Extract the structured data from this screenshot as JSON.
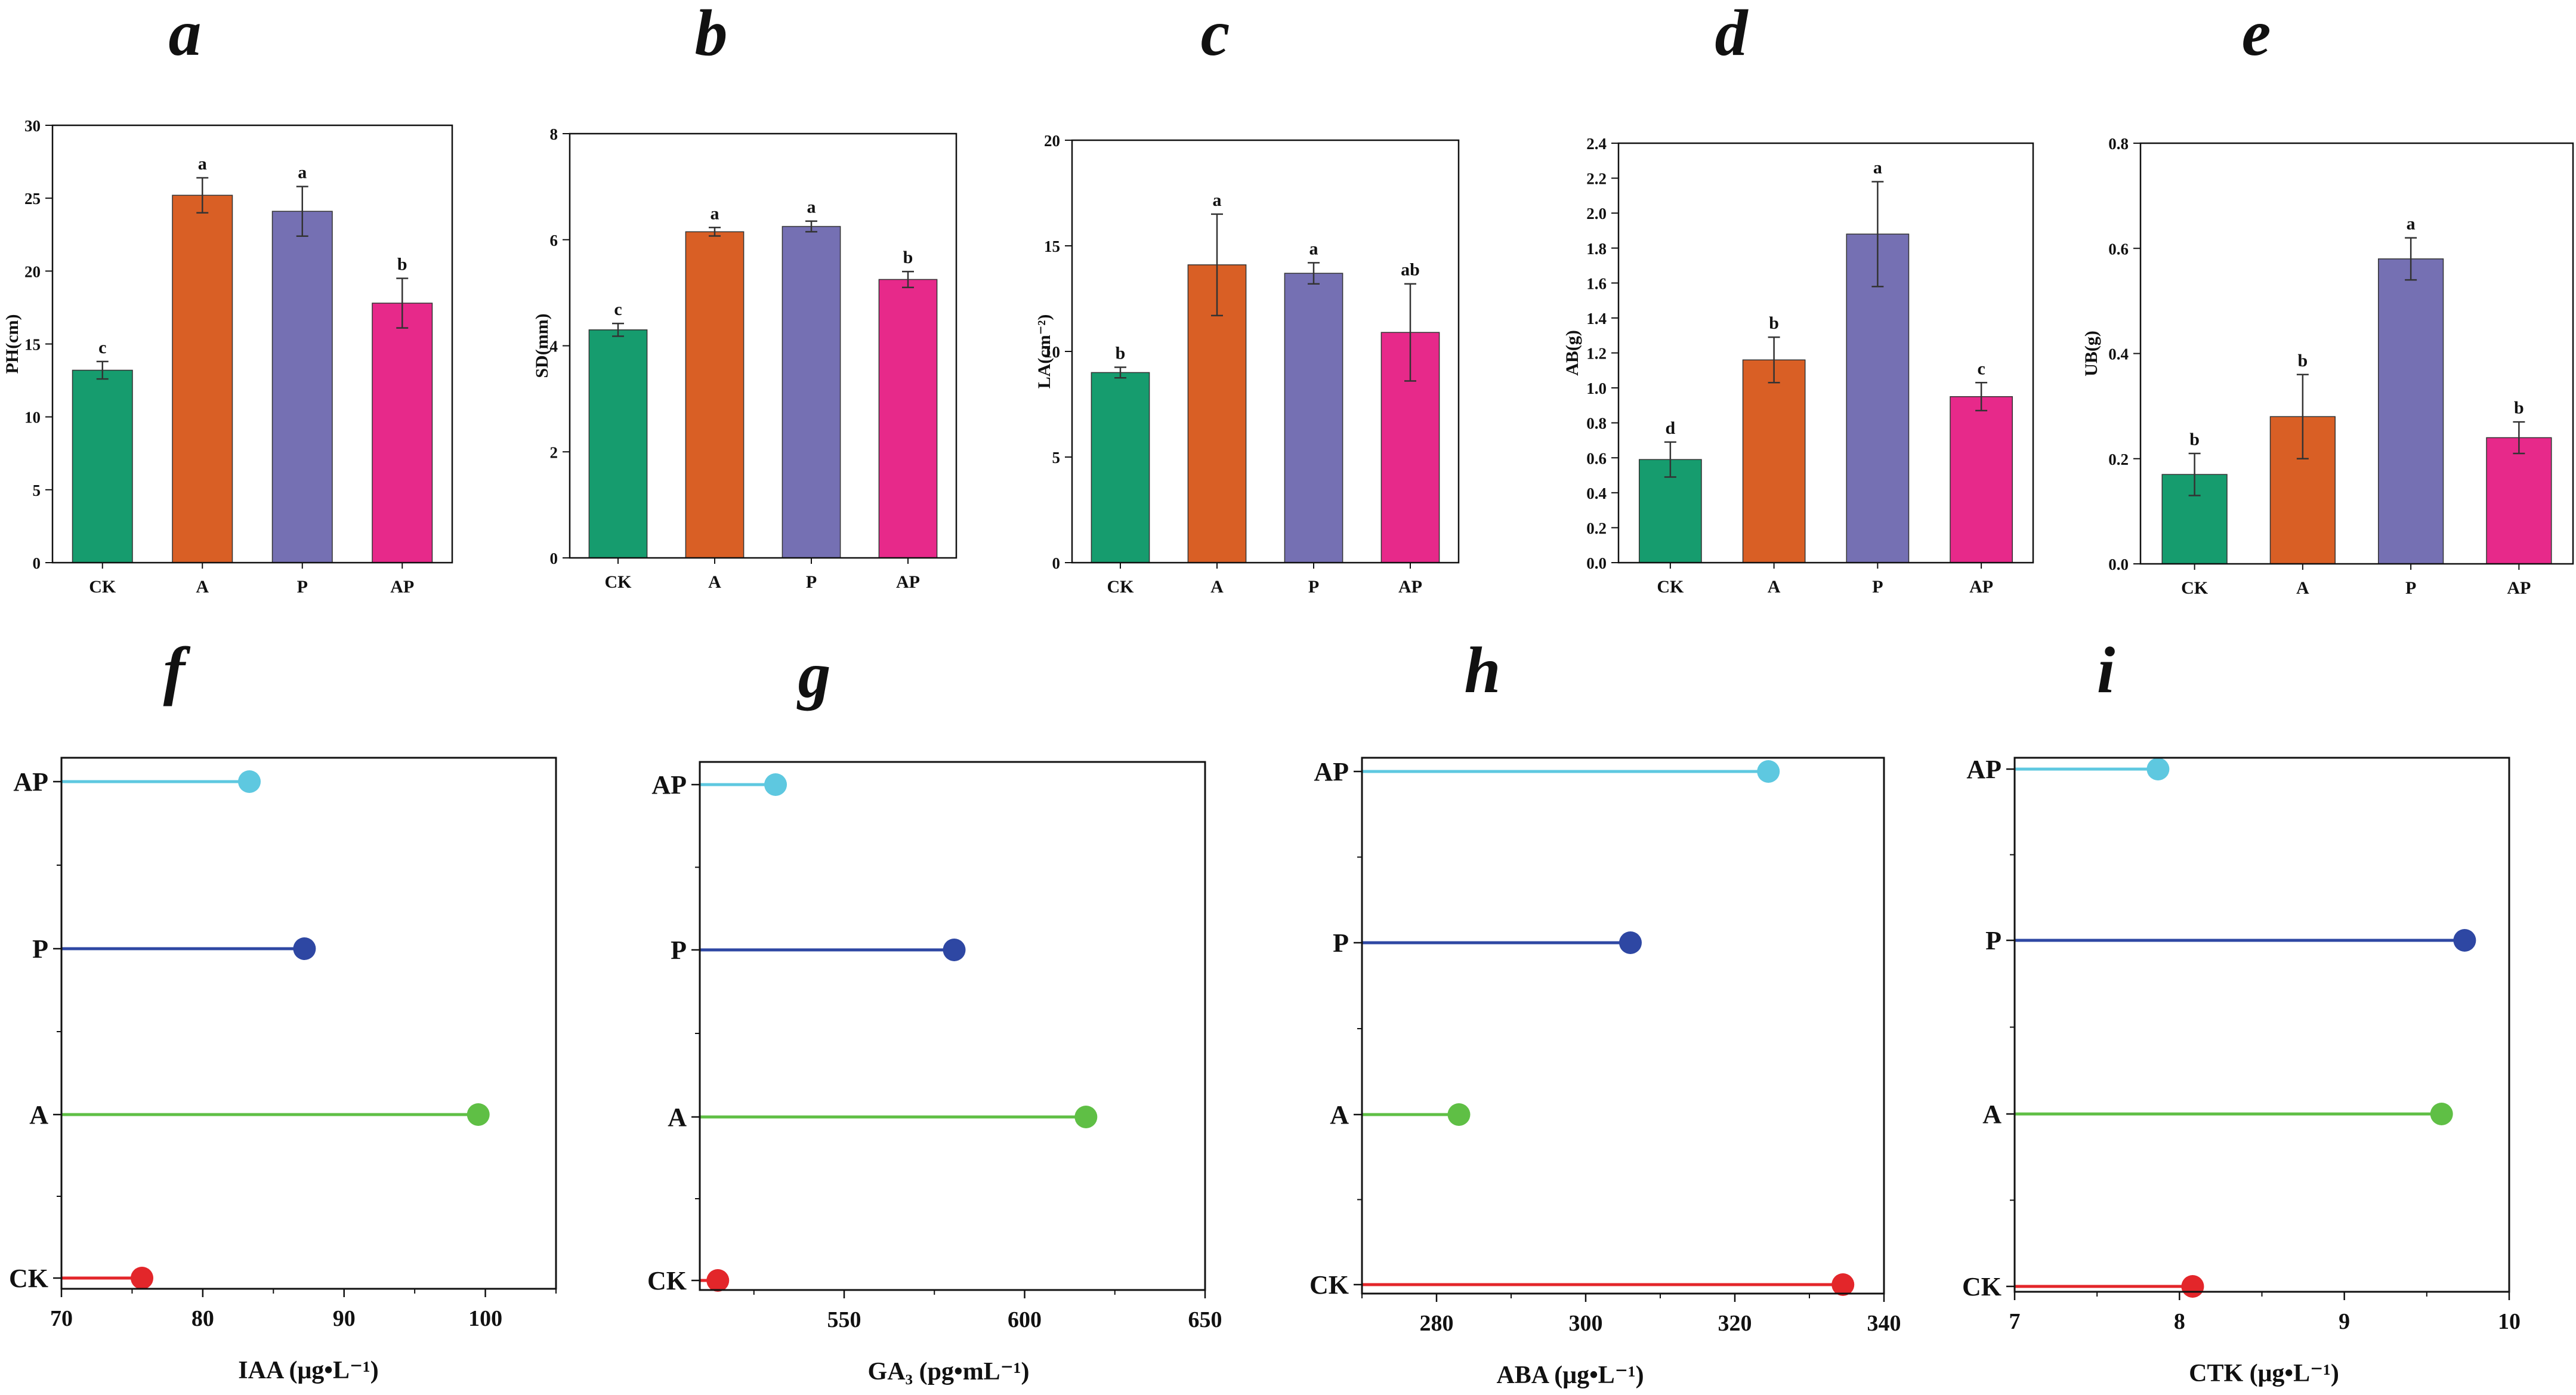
{
  "figure": {
    "title": ""
  },
  "chart_data": [
    {
      "panel": "a",
      "type": "bar",
      "categories": [
        "CK",
        "A",
        "P",
        "AP"
      ],
      "values": [
        13.2,
        25.2,
        24.1,
        17.8
      ],
      "errors": [
        0.6,
        1.2,
        1.7,
        1.7
      ],
      "significance": [
        "c",
        "a",
        "a",
        "b"
      ],
      "colors": [
        "#169c6e",
        "#d95f25",
        "#7570b3",
        "#e7298a"
      ],
      "ylabel": "PH(cm)",
      "xlabel": "",
      "ylim": [
        0,
        30
      ],
      "yticks": [
        0,
        5,
        10,
        15,
        20,
        25,
        30
      ],
      "ytick_labels": [
        "0",
        "5",
        "10",
        "15",
        "20",
        "25",
        "30"
      ]
    },
    {
      "panel": "b",
      "type": "bar",
      "categories": [
        "CK",
        "A",
        "P",
        "AP"
      ],
      "values": [
        4.3,
        6.15,
        6.25,
        5.25
      ],
      "errors": [
        0.12,
        0.08,
        0.1,
        0.15
      ],
      "significance": [
        "c",
        "a",
        "a",
        "b"
      ],
      "colors": [
        "#169c6e",
        "#d95f25",
        "#7570b3",
        "#e7298a"
      ],
      "ylabel": "SD(mm)",
      "xlabel": "",
      "ylim": [
        0,
        8
      ],
      "yticks": [
        0,
        2,
        4,
        6,
        8
      ],
      "ytick_labels": [
        "0",
        "2",
        "4",
        "6",
        "8"
      ]
    },
    {
      "panel": "c",
      "type": "bar",
      "categories": [
        "CK",
        "A",
        "P",
        "AP"
      ],
      "values": [
        9.0,
        14.1,
        13.7,
        10.9
      ],
      "errors": [
        0.25,
        2.4,
        0.5,
        2.3
      ],
      "significance": [
        "b",
        "a",
        "a",
        "ab"
      ],
      "colors": [
        "#169c6e",
        "#d95f25",
        "#7570b3",
        "#e7298a"
      ],
      "ylabel": "LA(cm⁻²)",
      "xlabel": "",
      "ylim": [
        0,
        20
      ],
      "yticks": [
        0,
        5,
        10,
        15,
        20
      ],
      "ytick_labels": [
        "0",
        "5",
        "10",
        "15",
        "20"
      ]
    },
    {
      "panel": "d",
      "type": "bar",
      "categories": [
        "CK",
        "A",
        "P",
        "AP"
      ],
      "values": [
        0.59,
        1.16,
        1.88,
        0.95
      ],
      "errors": [
        0.1,
        0.13,
        0.3,
        0.08
      ],
      "significance": [
        "d",
        "b",
        "a",
        "c"
      ],
      "colors": [
        "#169c6e",
        "#d95f25",
        "#7570b3",
        "#e7298a"
      ],
      "ylabel": "AB(g)",
      "xlabel": "",
      "ylim": [
        0,
        2.4
      ],
      "yticks": [
        0,
        0.2,
        0.4,
        0.6,
        0.8,
        1.0,
        1.2,
        1.4,
        1.6,
        1.8,
        2.0,
        2.2,
        2.4
      ],
      "ytick_labels": [
        "0.0",
        "0.2",
        "0.4",
        "0.6",
        "0.8",
        "1.0",
        "1.2",
        "1.4",
        "1.6",
        "1.8",
        "2.0",
        "2.2",
        "2.4"
      ]
    },
    {
      "panel": "e",
      "type": "bar",
      "categories": [
        "CK",
        "A",
        "P",
        "AP"
      ],
      "values": [
        0.17,
        0.28,
        0.58,
        0.24
      ],
      "errors": [
        0.04,
        0.08,
        0.04,
        0.03
      ],
      "significance": [
        "b",
        "b",
        "a",
        "b"
      ],
      "colors": [
        "#169c6e",
        "#d95f25",
        "#7570b3",
        "#e7298a"
      ],
      "ylabel": "UB(g)",
      "xlabel": "",
      "ylim": [
        0,
        0.8
      ],
      "yticks": [
        0,
        0.2,
        0.4,
        0.6,
        0.8
      ],
      "ytick_labels": [
        "0.0",
        "0.2",
        "0.4",
        "0.6",
        "0.8"
      ]
    },
    {
      "panel": "f",
      "type": "lollipop",
      "categories": [
        "AP",
        "P",
        "A",
        "CK"
      ],
      "values": [
        83.3,
        87.2,
        99.5,
        75.7
      ],
      "colors": [
        "#5ec8e0",
        "#2e47a3",
        "#5fbf45",
        "#e3262a"
      ],
      "xlabel_main": "IAA",
      "xlabel_unit": "(μg•L⁻¹)",
      "xlim": [
        70,
        105
      ],
      "xticks": [
        70,
        80,
        90,
        100
      ],
      "xtick_labels": [
        "70",
        "80",
        "90",
        "100"
      ]
    },
    {
      "panel": "g",
      "type": "lollipop",
      "categories": [
        "AP",
        "P",
        "A",
        "CK"
      ],
      "values": [
        531,
        580.5,
        617,
        515
      ],
      "colors": [
        "#5ec8e0",
        "#2e47a3",
        "#5fbf45",
        "#e3262a"
      ],
      "xlabel_main": "GA₃",
      "xlabel_unit": "(pg•mL⁻¹)",
      "xlim": [
        510,
        650
      ],
      "xticks": [
        550,
        600,
        650
      ],
      "xtick_labels": [
        "550",
        "600",
        "650"
      ]
    },
    {
      "panel": "h",
      "type": "lollipop",
      "categories": [
        "AP",
        "P",
        "A",
        "CK"
      ],
      "values": [
        324.5,
        306,
        283,
        334.5
      ],
      "colors": [
        "#5ec8e0",
        "#2e47a3",
        "#5fbf45",
        "#e3262a"
      ],
      "xlabel_main": "ABA",
      "xlabel_unit": "(μg•L⁻¹)",
      "xlim": [
        270,
        340
      ],
      "xticks": [
        280,
        300,
        320,
        340
      ],
      "xtick_labels": [
        "280",
        "300",
        "320",
        "340"
      ]
    },
    {
      "panel": "i",
      "type": "lollipop",
      "categories": [
        "AP",
        "P",
        "A",
        "CK"
      ],
      "values": [
        7.87,
        9.73,
        9.59,
        8.08
      ],
      "colors": [
        "#5ec8e0",
        "#2e47a3",
        "#5fbf45",
        "#e3262a"
      ],
      "xlabel_main": "CTK",
      "xlabel_unit": "(μg•L⁻¹)",
      "xlim": [
        7,
        10
      ],
      "xticks": [
        7,
        8,
        9,
        10
      ],
      "xtick_labels": [
        "7",
        "8",
        "9",
        "10"
      ]
    }
  ]
}
